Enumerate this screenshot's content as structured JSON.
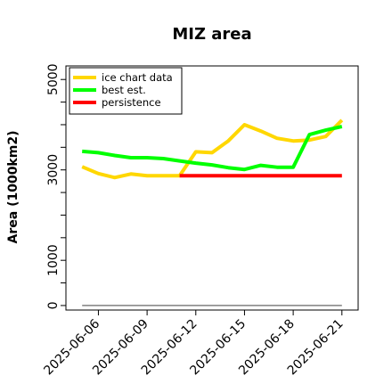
{
  "chart_data": {
    "type": "line",
    "title": "MIZ area",
    "xlabel": "",
    "ylabel": "Area (1000km2)",
    "x_ticks": [
      "2025-06-06",
      "2025-06-09",
      "2025-06-12",
      "2025-06-15",
      "2025-06-18",
      "2025-06-21"
    ],
    "y_ticks": [
      0,
      1000,
      3000,
      5000
    ],
    "xlim": [
      "2025-06-04",
      "2025-06-22"
    ],
    "ylim": [
      -100,
      5300
    ],
    "legend_position": "top-left",
    "grid": false,
    "series": [
      {
        "name": "ice chart data",
        "color": "#FFD700",
        "x": [
          "2025-06-05",
          "2025-06-06",
          "2025-06-07",
          "2025-06-08",
          "2025-06-09",
          "2025-06-10",
          "2025-06-11",
          "2025-06-12",
          "2025-06-13",
          "2025-06-14",
          "2025-06-15",
          "2025-06-16",
          "2025-06-17",
          "2025-06-18",
          "2025-06-19",
          "2025-06-20",
          "2025-06-21"
        ],
        "values": [
          3070,
          2920,
          2830,
          2910,
          2870,
          2870,
          2870,
          3400,
          3380,
          3640,
          4000,
          3860,
          3700,
          3640,
          3660,
          3740,
          4100
        ]
      },
      {
        "name": "best est.",
        "color": "#00FF00",
        "x": [
          "2025-06-05",
          "2025-06-06",
          "2025-06-07",
          "2025-06-08",
          "2025-06-09",
          "2025-06-10",
          "2025-06-11",
          "2025-06-12",
          "2025-06-13",
          "2025-06-14",
          "2025-06-15",
          "2025-06-16",
          "2025-06-17",
          "2025-06-18",
          "2025-06-19",
          "2025-06-20",
          "2025-06-21"
        ],
        "values": [
          3410,
          3380,
          3320,
          3270,
          3270,
          3250,
          3200,
          3150,
          3110,
          3050,
          3010,
          3100,
          3060,
          3060,
          3780,
          3880,
          3960
        ]
      },
      {
        "name": "persistence",
        "color": "#FF0000",
        "x": [
          "2025-06-11",
          "2025-06-21"
        ],
        "values": [
          2870,
          2870
        ]
      },
      {
        "name": "",
        "color": "#808080",
        "x": [
          "2025-06-05",
          "2025-06-21"
        ],
        "values": [
          0,
          0
        ]
      }
    ]
  }
}
